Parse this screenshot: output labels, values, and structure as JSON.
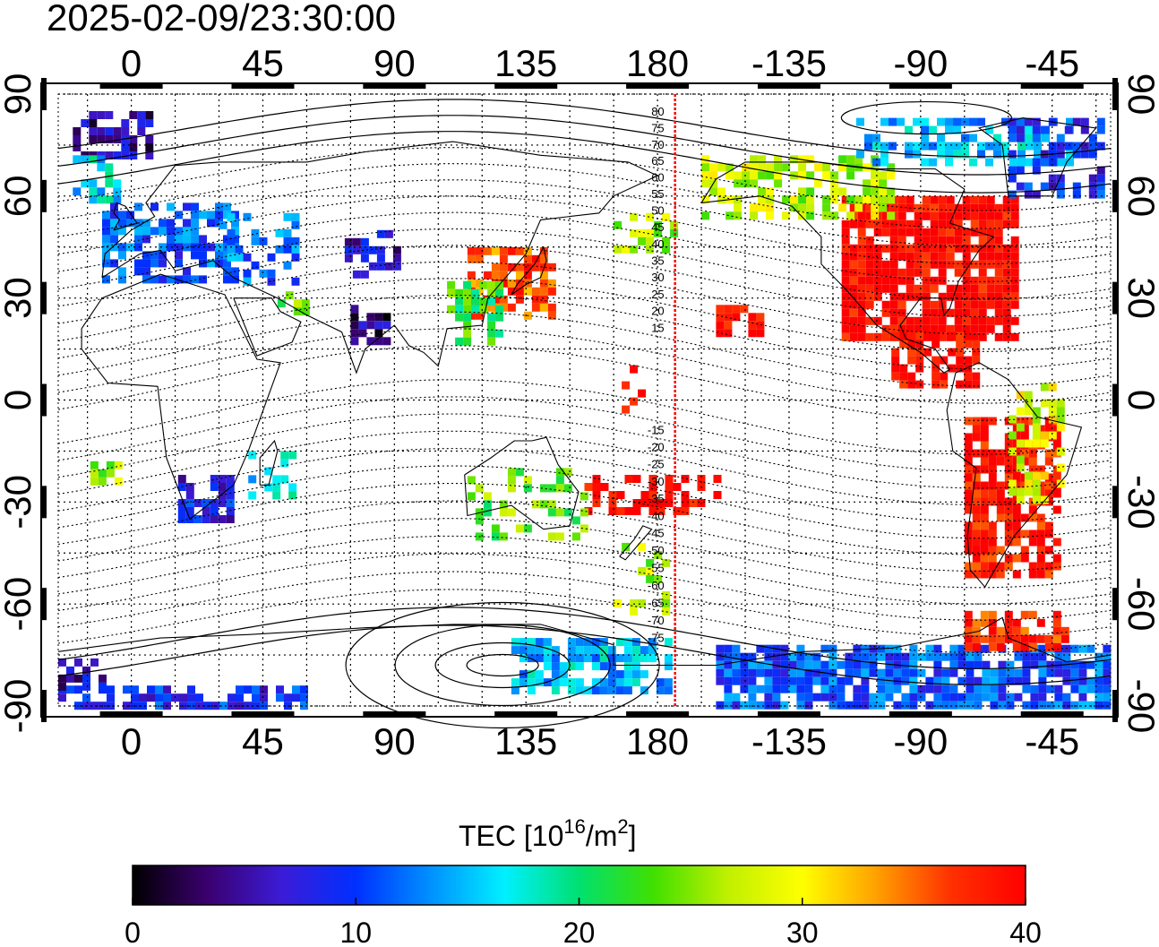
{
  "timestamp": "2025-02-09/23:30:00",
  "colorbar": {
    "title_main": "TEC  [10",
    "title_sup1": "16",
    "title_mid": "/m",
    "title_sup2": "2",
    "title_end": "]",
    "ticks": [
      {
        "value": 0,
        "label": "0"
      },
      {
        "value": 10,
        "label": "10"
      },
      {
        "value": 20,
        "label": "20"
      },
      {
        "value": 30,
        "label": "30"
      },
      {
        "value": 40,
        "label": "40"
      }
    ],
    "range": [
      0,
      40
    ],
    "colors": [
      "#000000",
      "#3a006e",
      "#3b1bd6",
      "#0030ff",
      "#0090ff",
      "#00f0ff",
      "#00e070",
      "#40e000",
      "#c0f000",
      "#ffff00",
      "#ffa000",
      "#ff3000",
      "#ff0000"
    ]
  },
  "map": {
    "projection": "equirectangular",
    "lon_range": [
      -25,
      335
    ],
    "lat_range": [
      -90,
      90
    ],
    "lon_ticks": [
      {
        "value": 0,
        "label": "0"
      },
      {
        "value": 45,
        "label": "45"
      },
      {
        "value": 90,
        "label": "90"
      },
      {
        "value": 135,
        "label": "135"
      },
      {
        "value": 180,
        "label": "180"
      },
      {
        "value": 225,
        "label": "-135"
      },
      {
        "value": 270,
        "label": "-90"
      },
      {
        "value": 315,
        "label": "-45"
      }
    ],
    "lat_ticks": [
      {
        "value": 90,
        "label": "90"
      },
      {
        "value": 60,
        "label": "60"
      },
      {
        "value": 30,
        "label": "30"
      },
      {
        "value": 0,
        "label": "0"
      },
      {
        "value": -30,
        "label": "-30"
      },
      {
        "value": -60,
        "label": "-60"
      },
      {
        "value": -90,
        "label": "-90"
      }
    ],
    "terminator_lon": 186,
    "terminator_color": "#ff0000",
    "contour_labels": [
      {
        "lat": 80,
        "label": "80"
      },
      {
        "lat": 75,
        "label": "75"
      },
      {
        "lat": 70,
        "label": "70"
      },
      {
        "lat": 65,
        "label": "65"
      },
      {
        "lat": 60,
        "label": "60"
      },
      {
        "lat": 55,
        "label": "55"
      },
      {
        "lat": 50,
        "label": "50"
      },
      {
        "lat": 45,
        "label": "45"
      },
      {
        "lat": 40,
        "label": "40"
      },
      {
        "lat": 35,
        "label": "35"
      },
      {
        "lat": 30,
        "label": "30"
      },
      {
        "lat": 25,
        "label": "25"
      },
      {
        "lat": 20,
        "label": "20"
      },
      {
        "lat": 15,
        "label": "15"
      },
      {
        "lat": -15,
        "label": "-15"
      },
      {
        "lat": -20,
        "label": "-20"
      },
      {
        "lat": -25,
        "label": "-25"
      },
      {
        "lat": -30,
        "label": "-30"
      },
      {
        "lat": -35,
        "label": "-35"
      },
      {
        "lat": -40,
        "label": "-40"
      },
      {
        "lat": -45,
        "label": "-45"
      },
      {
        "lat": -50,
        "label": "-50"
      },
      {
        "lat": -55,
        "label": "-55"
      },
      {
        "lat": -60,
        "label": "-60"
      },
      {
        "lat": -65,
        "label": "-65"
      },
      {
        "lat": -70,
        "label": "-70"
      },
      {
        "lat": -75,
        "label": "-75"
      }
    ],
    "tec_regions": [
      {
        "name": "north-america",
        "lon": [
          243,
          303
        ],
        "lat": [
          18,
          60
        ],
        "tec": 40,
        "density": 0.85
      },
      {
        "name": "central-america",
        "lon": [
          260,
          290
        ],
        "lat": [
          5,
          20
        ],
        "tec": 40,
        "density": 0.7
      },
      {
        "name": "south-america",
        "lon": [
          285,
          318
        ],
        "lat": [
          -52,
          -5
        ],
        "tec": 39,
        "density": 0.75
      },
      {
        "name": "south-america-east",
        "lon": [
          300,
          318
        ],
        "lat": [
          -30,
          5
        ],
        "tec": 28,
        "density": 0.5
      },
      {
        "name": "alaska-canada",
        "lon": [
          195,
          260
        ],
        "lat": [
          55,
          72
        ],
        "tec": 27,
        "density": 0.6
      },
      {
        "name": "canada-north",
        "lon": [
          248,
          320
        ],
        "lat": [
          70,
          83
        ],
        "tec": 15,
        "density": 0.55
      },
      {
        "name": "greenland",
        "lon": [
          300,
          333
        ],
        "lat": [
          60,
          83
        ],
        "tec": 9,
        "density": 0.5
      },
      {
        "name": "arctic-west",
        "lon": [
          -20,
          5
        ],
        "lat": [
          72,
          85
        ],
        "tec": 5,
        "density": 0.7
      },
      {
        "name": "arctic-west-low",
        "lon": [
          -20,
          -5
        ],
        "lat": [
          60,
          72
        ],
        "tec": 16,
        "density": 0.6
      },
      {
        "name": "europe",
        "lon": [
          -10,
          35
        ],
        "lat": [
          36,
          58
        ],
        "tec": 11,
        "density": 0.7
      },
      {
        "name": "russia-west",
        "lon": [
          30,
          55
        ],
        "lat": [
          35,
          55
        ],
        "tec": 12,
        "density": 0.4
      },
      {
        "name": "central-asia",
        "lon": [
          73,
          90
        ],
        "lat": [
          38,
          50
        ],
        "tec": 6,
        "density": 0.6
      },
      {
        "name": "middle-east",
        "lon": [
          50,
          60
        ],
        "lat": [
          25,
          32
        ],
        "tec": 24,
        "density": 0.5
      },
      {
        "name": "india",
        "lon": [
          75,
          88
        ],
        "lat": [
          18,
          28
        ],
        "tec": 4,
        "density": 0.5
      },
      {
        "name": "japan-china",
        "lon": [
          115,
          145
        ],
        "lat": [
          25,
          45
        ],
        "tec": 36,
        "density": 0.65
      },
      {
        "name": "china-south",
        "lon": [
          108,
          125
        ],
        "lat": [
          18,
          35
        ],
        "tec": 22,
        "density": 0.5
      },
      {
        "name": "pacific-north",
        "lon": [
          165,
          185
        ],
        "lat": [
          45,
          55
        ],
        "tec": 26,
        "density": 0.5
      },
      {
        "name": "pacific-small",
        "lon": [
          200,
          215
        ],
        "lat": [
          20,
          28
        ],
        "tec": 40,
        "density": 0.6
      },
      {
        "name": "pacific-islands",
        "lon": [
          165,
          175
        ],
        "lat": [
          -5,
          15
        ],
        "tec": 40,
        "density": 0.25
      },
      {
        "name": "pacific-south",
        "lon": [
          155,
          200
        ],
        "lat": [
          -32,
          -22
        ],
        "tec": 40,
        "density": 0.5
      },
      {
        "name": "australia",
        "lon": [
          115,
          155
        ],
        "lat": [
          -40,
          -20
        ],
        "tec": 24,
        "density": 0.3
      },
      {
        "name": "southern-africa",
        "lon": [
          16,
          35
        ],
        "lat": [
          -35,
          -22
        ],
        "tec": 8,
        "density": 0.8
      },
      {
        "name": "east-africa",
        "lon": [
          40,
          55
        ],
        "lat": [
          -27,
          -15
        ],
        "tec": 16,
        "density": 0.4
      },
      {
        "name": "south-atlantic",
        "lon": [
          -14,
          -5
        ],
        "lat": [
          -25,
          -18
        ],
        "tec": 26,
        "density": 0.5
      },
      {
        "name": "new-zealand",
        "lon": [
          165,
          183
        ],
        "lat": [
          -62,
          -42
        ],
        "tec": 26,
        "density": 0.2
      },
      {
        "name": "antarctica-pacific",
        "lon": [
          130,
          185
        ],
        "lat": [
          -85,
          -70
        ],
        "tec": 15,
        "density": 0.7
      },
      {
        "name": "antarctica-americas",
        "lon": [
          200,
          335
        ],
        "lat": [
          -90,
          -72
        ],
        "tec": 11,
        "density": 0.8
      },
      {
        "name": "antarctic-peninsula",
        "lon": [
          285,
          320
        ],
        "lat": [
          -72,
          -62
        ],
        "tec": 38,
        "density": 0.7
      },
      {
        "name": "antarctica-west",
        "lon": [
          -25,
          60
        ],
        "lat": [
          -89,
          -84
        ],
        "tec": 9,
        "density": 0.7
      },
      {
        "name": "antarctica-far-west",
        "lon": [
          -25,
          -10
        ],
        "lat": [
          -84,
          -76
        ],
        "tec": 6,
        "density": 0.6
      }
    ]
  }
}
